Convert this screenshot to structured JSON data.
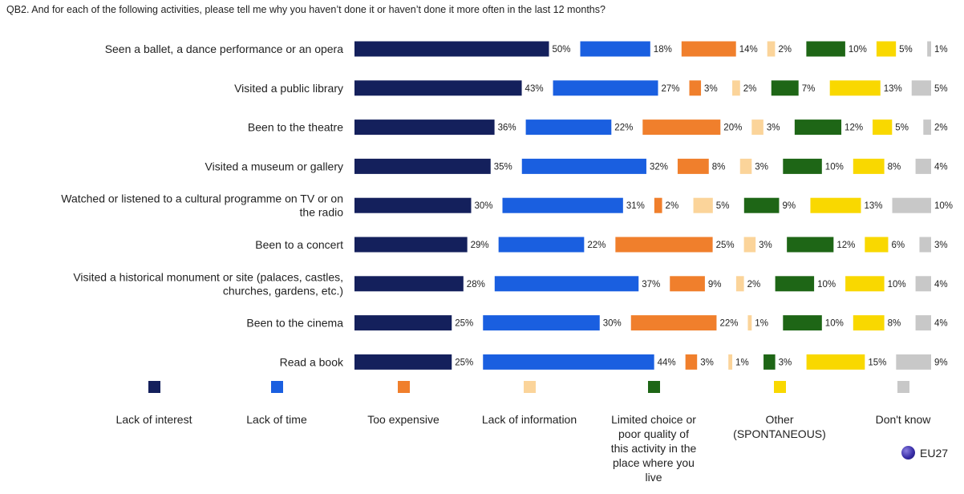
{
  "question": "QB2. And for each of the following activities, please tell me why you haven’t done it or haven’t done it more often in the last 12 months?",
  "badge": {
    "label": "EU27",
    "icon": "globe-icon"
  },
  "chart_data": {
    "type": "bar",
    "orientation": "horizontal",
    "stacked": true,
    "categories": [
      [
        "Seen a ballet, a dance performance or an opera"
      ],
      [
        "Visited a public library"
      ],
      [
        "Been to the theatre"
      ],
      [
        "Visited a museum or gallery"
      ],
      [
        "Watched or listened to a cultural programme on TV or on",
        "the radio"
      ],
      [
        "Been to a concert"
      ],
      [
        "Visited a historical monument or site (palaces, castles,",
        "churches, gardens, etc.)"
      ],
      [
        "Been to the cinema"
      ],
      [
        "Read a book"
      ]
    ],
    "series": [
      {
        "name": "Lack of interest",
        "color": "#14205c",
        "values": [
          50,
          43,
          36,
          35,
          30,
          29,
          28,
          25,
          25
        ]
      },
      {
        "name": "Lack of time",
        "color": "#1a5fe0",
        "values": [
          18,
          27,
          22,
          32,
          31,
          22,
          37,
          30,
          44
        ]
      },
      {
        "name": "Too expensive",
        "color": "#f07f2c",
        "values": [
          14,
          3,
          20,
          8,
          2,
          25,
          9,
          22,
          3
        ]
      },
      {
        "name": "Lack of information",
        "color": "#fbd49a",
        "values": [
          2,
          2,
          3,
          3,
          5,
          3,
          2,
          1,
          1
        ]
      },
      {
        "name": "Limited choice or poor quality of this activity in the place where you live",
        "label_lines": [
          "Limited choice or",
          "poor quality of",
          "this activity in the",
          "place where you",
          "live"
        ],
        "color": "#1e6616",
        "values": [
          10,
          7,
          12,
          10,
          9,
          12,
          10,
          10,
          3
        ]
      },
      {
        "name": "Other (SPONTANEOUS)",
        "label_lines": [
          "Other",
          "(SPONTANEOUS)"
        ],
        "color": "#f9d800",
        "values": [
          5,
          13,
          5,
          8,
          13,
          6,
          10,
          8,
          15
        ]
      },
      {
        "name": "Don't know",
        "color": "#c8c8c8",
        "values": [
          1,
          5,
          2,
          4,
          10,
          3,
          4,
          4,
          9
        ]
      }
    ],
    "value_suffix": "%",
    "legend_position": "bottom"
  }
}
